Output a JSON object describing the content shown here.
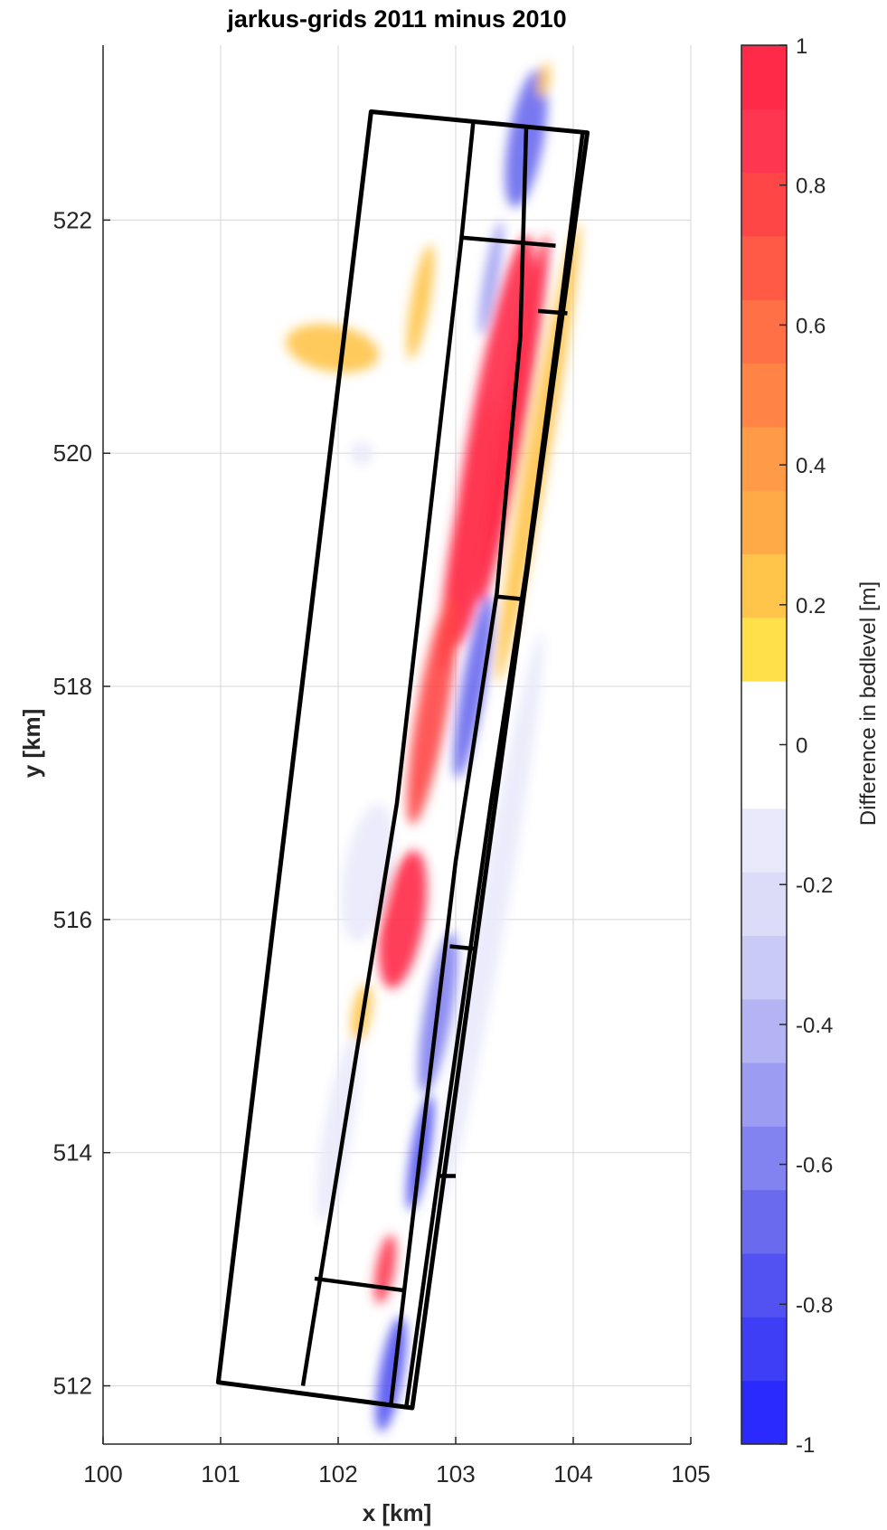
{
  "chart_data": {
    "type": "heatmap",
    "title": "jarkus-grids 2011 minus 2010",
    "xlabel": "x [km]",
    "ylabel": "y [km]",
    "xlim": [
      100,
      105
    ],
    "ylim": [
      511.5,
      523.5
    ],
    "xticks": [
      "100",
      "101",
      "102",
      "103",
      "104",
      "105"
    ],
    "yticks": [
      "512",
      "514",
      "516",
      "518",
      "520",
      "522"
    ],
    "xtick_values": [
      100,
      101,
      102,
      103,
      104,
      105
    ],
    "ytick_values": [
      512,
      514,
      516,
      518,
      520,
      522
    ],
    "grid": true,
    "colorbar": {
      "label": "Difference in bedlevel [m]",
      "range": [
        -1,
        1
      ],
      "ticks": [
        "1",
        "0.8",
        "0.6",
        "0.4",
        "0.2",
        "0",
        "-0.2",
        "-0.4",
        "-0.6",
        "-0.8",
        "-1"
      ],
      "tick_values": [
        1,
        0.8,
        0.6,
        0.4,
        0.2,
        0,
        -0.2,
        -0.4,
        -0.6,
        -0.8,
        -1
      ],
      "bins": 22,
      "colors": [
        "#2a2aff",
        "#3e3ef7",
        "#5252f2",
        "#6a6aee",
        "#8282f0",
        "#9c9cf2",
        "#b4b4f5",
        "#cacaf7",
        "#dcdcf9",
        "#e9e9fb",
        "#ffffff",
        "#ffffff",
        "#ffe04a",
        "#ffc44a",
        "#ffaa46",
        "#ff9a46",
        "#ff8446",
        "#ff7046",
        "#ff5a46",
        "#ff4646",
        "#ff3650",
        "#ff2a48"
      ]
    },
    "outer_polygon": [
      [
        100.98,
        512.03
      ],
      [
        102.63,
        511.81
      ],
      [
        104.12,
        522.75
      ],
      [
        102.28,
        522.93
      ]
    ],
    "boundary_lines": [
      [
        [
          101.7,
          512.0
        ],
        [
          102.5,
          517.0
        ],
        [
          103.05,
          521.85
        ],
        [
          103.15,
          522.85
        ]
      ],
      [
        [
          102.45,
          511.85
        ],
        [
          102.7,
          514.0
        ],
        [
          103.0,
          516.5
        ],
        [
          103.35,
          518.8
        ],
        [
          103.55,
          521.0
        ],
        [
          103.6,
          522.8
        ]
      ],
      [
        [
          102.58,
          511.82
        ],
        [
          102.95,
          514.5
        ],
        [
          103.3,
          517.0
        ],
        [
          103.6,
          519.0
        ],
        [
          103.9,
          521.3
        ],
        [
          104.08,
          522.75
        ]
      ]
    ],
    "cross_lines": [
      [
        [
          101.8,
          512.92
        ],
        [
          102.55,
          512.82
        ]
      ],
      [
        [
          102.85,
          513.8
        ],
        [
          103.0,
          513.8
        ]
      ],
      [
        [
          102.95,
          515.77
        ],
        [
          103.15,
          515.75
        ]
      ],
      [
        [
          103.35,
          518.77
        ],
        [
          103.55,
          518.75
        ]
      ],
      [
        [
          103.05,
          521.85
        ],
        [
          103.85,
          521.78
        ]
      ],
      [
        [
          103.7,
          521.22
        ],
        [
          103.95,
          521.2
        ]
      ]
    ],
    "difference_patches": [
      {
        "x": 103.3,
        "y": 520.1,
        "rx": 0.2,
        "ry": 1.8,
        "value": 0.95
      },
      {
        "x": 103.5,
        "y": 520.3,
        "rx": 0.1,
        "ry": 1.6,
        "value": 1.0
      },
      {
        "x": 103.1,
        "y": 519.3,
        "rx": 0.13,
        "ry": 1.2,
        "value": 0.85
      },
      {
        "x": 102.8,
        "y": 517.8,
        "rx": 0.13,
        "ry": 1.0,
        "value": 0.8
      },
      {
        "x": 102.55,
        "y": 516.0,
        "rx": 0.18,
        "ry": 0.6,
        "value": 0.95
      },
      {
        "x": 102.4,
        "y": 513.0,
        "rx": 0.08,
        "ry": 0.3,
        "value": 0.85
      },
      {
        "x": 103.15,
        "y": 518.0,
        "rx": 0.1,
        "ry": 0.8,
        "value": -0.7
      },
      {
        "x": 102.85,
        "y": 515.2,
        "rx": 0.12,
        "ry": 0.7,
        "value": -0.6
      },
      {
        "x": 102.7,
        "y": 514.0,
        "rx": 0.08,
        "ry": 0.5,
        "value": -0.8
      },
      {
        "x": 103.6,
        "y": 522.7,
        "rx": 0.15,
        "ry": 0.6,
        "value": -0.7
      },
      {
        "x": 103.3,
        "y": 521.5,
        "rx": 0.06,
        "ry": 0.5,
        "value": -0.5
      },
      {
        "x": 102.45,
        "y": 512.1,
        "rx": 0.1,
        "ry": 0.5,
        "value": -0.75
      },
      {
        "x": 101.95,
        "y": 520.9,
        "rx": 0.4,
        "ry": 0.2,
        "value": 0.25
      },
      {
        "x": 102.7,
        "y": 521.3,
        "rx": 0.08,
        "ry": 0.5,
        "value": 0.2
      },
      {
        "x": 103.75,
        "y": 523.2,
        "rx": 0.05,
        "ry": 0.15,
        "value": 0.2
      },
      {
        "x": 102.2,
        "y": 515.2,
        "rx": 0.08,
        "ry": 0.25,
        "value": 0.2
      },
      {
        "x": 102.25,
        "y": 516.4,
        "rx": 0.2,
        "ry": 0.6,
        "value": -0.15
      },
      {
        "x": 102.0,
        "y": 514.2,
        "rx": 0.12,
        "ry": 0.8,
        "value": -0.15
      },
      {
        "x": 102.2,
        "y": 520.0,
        "rx": 0.1,
        "ry": 0.1,
        "value": -0.15
      },
      {
        "x": 103.3,
        "y": 516.0,
        "rx": 0.12,
        "ry": 2.5,
        "value": -0.15
      },
      {
        "x": 103.7,
        "y": 520.0,
        "rx": 0.1,
        "ry": 2.0,
        "value": 0.2
      }
    ]
  }
}
